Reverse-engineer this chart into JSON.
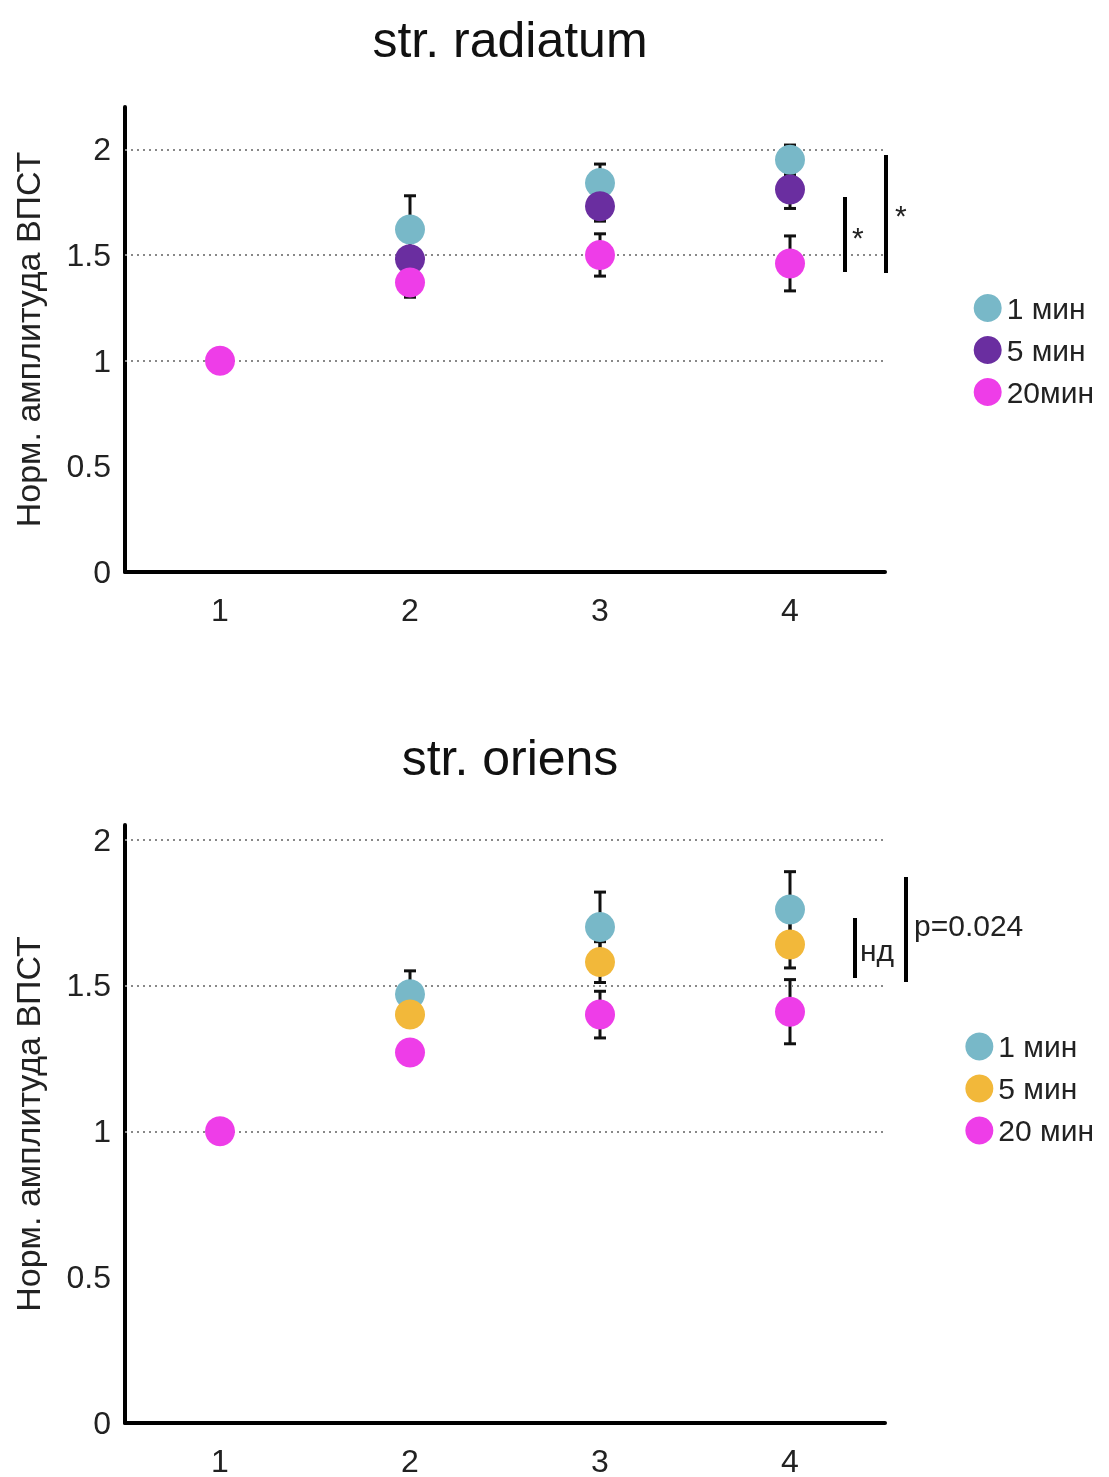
{
  "chart_data": [
    {
      "type": "scatter",
      "title": "str. radiatum",
      "ylabel": "Норм. амплитуда ВПСТ",
      "categories": [
        "1",
        "2",
        "3",
        "4"
      ],
      "ylim": [
        0,
        2.2
      ],
      "yticks": [
        0,
        0.5,
        1,
        1.5,
        2
      ],
      "grid": false,
      "legend": "right",
      "marker": "circle",
      "ref_lines": [
        {
          "axis": "y",
          "value": 1,
          "line_style": "dotted",
          "color": "#888888"
        },
        {
          "axis": "y",
          "value": 1.5,
          "line_style": "dotted",
          "color": "#888888"
        },
        {
          "axis": "y",
          "value": 2,
          "line_style": "dotted",
          "color": "#888888"
        }
      ],
      "series": [
        {
          "name": "1 мин",
          "color": "#78b8c8",
          "values": [
            null,
            1.62,
            1.84,
            1.95
          ],
          "errors": [
            null,
            0.16,
            0.09,
            0.07
          ]
        },
        {
          "name": "5 мин",
          "color": "#6a2ea0",
          "values": [
            null,
            1.48,
            1.73,
            1.81
          ],
          "errors": [
            null,
            null,
            0.07,
            0.09
          ]
        },
        {
          "name": "20мин",
          "color": "#ee3de8",
          "values": [
            1,
            1.37,
            1.5,
            1.46
          ],
          "errors": [
            null,
            0.07,
            0.1,
            0.13
          ]
        }
      ],
      "annotations": [
        "*",
        "*"
      ]
    },
    {
      "type": "scatter",
      "title": "str. oriens",
      "ylabel": "Норм. амплитуда ВПСТ",
      "categories": [
        "1",
        "2",
        "3",
        "4"
      ],
      "ylim": [
        0,
        2.05
      ],
      "yticks": [
        0,
        0.5,
        1,
        1.5,
        2
      ],
      "grid": false,
      "legend": "right",
      "marker": "circle",
      "ref_lines": [
        {
          "axis": "y",
          "value": 1,
          "line_style": "dotted",
          "color": "#888888"
        },
        {
          "axis": "y",
          "value": 1.5,
          "line_style": "dotted",
          "color": "#888888"
        },
        {
          "axis": "y",
          "value": 2,
          "line_style": "dotted",
          "color": "#888888"
        }
      ],
      "series": [
        {
          "name": "1 мин",
          "color": "#78b8c8",
          "values": [
            null,
            1.47,
            1.7,
            1.76
          ],
          "errors": [
            null,
            0.08,
            0.12,
            0.13
          ]
        },
        {
          "name": "5 мин",
          "color": "#f2b83a",
          "values": [
            null,
            1.4,
            1.58,
            1.64
          ],
          "errors": [
            null,
            null,
            0.07,
            0.08
          ]
        },
        {
          "name": "20 мин",
          "color": "#ee3de8",
          "values": [
            1,
            1.27,
            1.4,
            1.41
          ],
          "errors": [
            null,
            null,
            0.08,
            0.11
          ]
        }
      ],
      "annotations": [
        "нд",
        "p=0.024"
      ]
    }
  ]
}
